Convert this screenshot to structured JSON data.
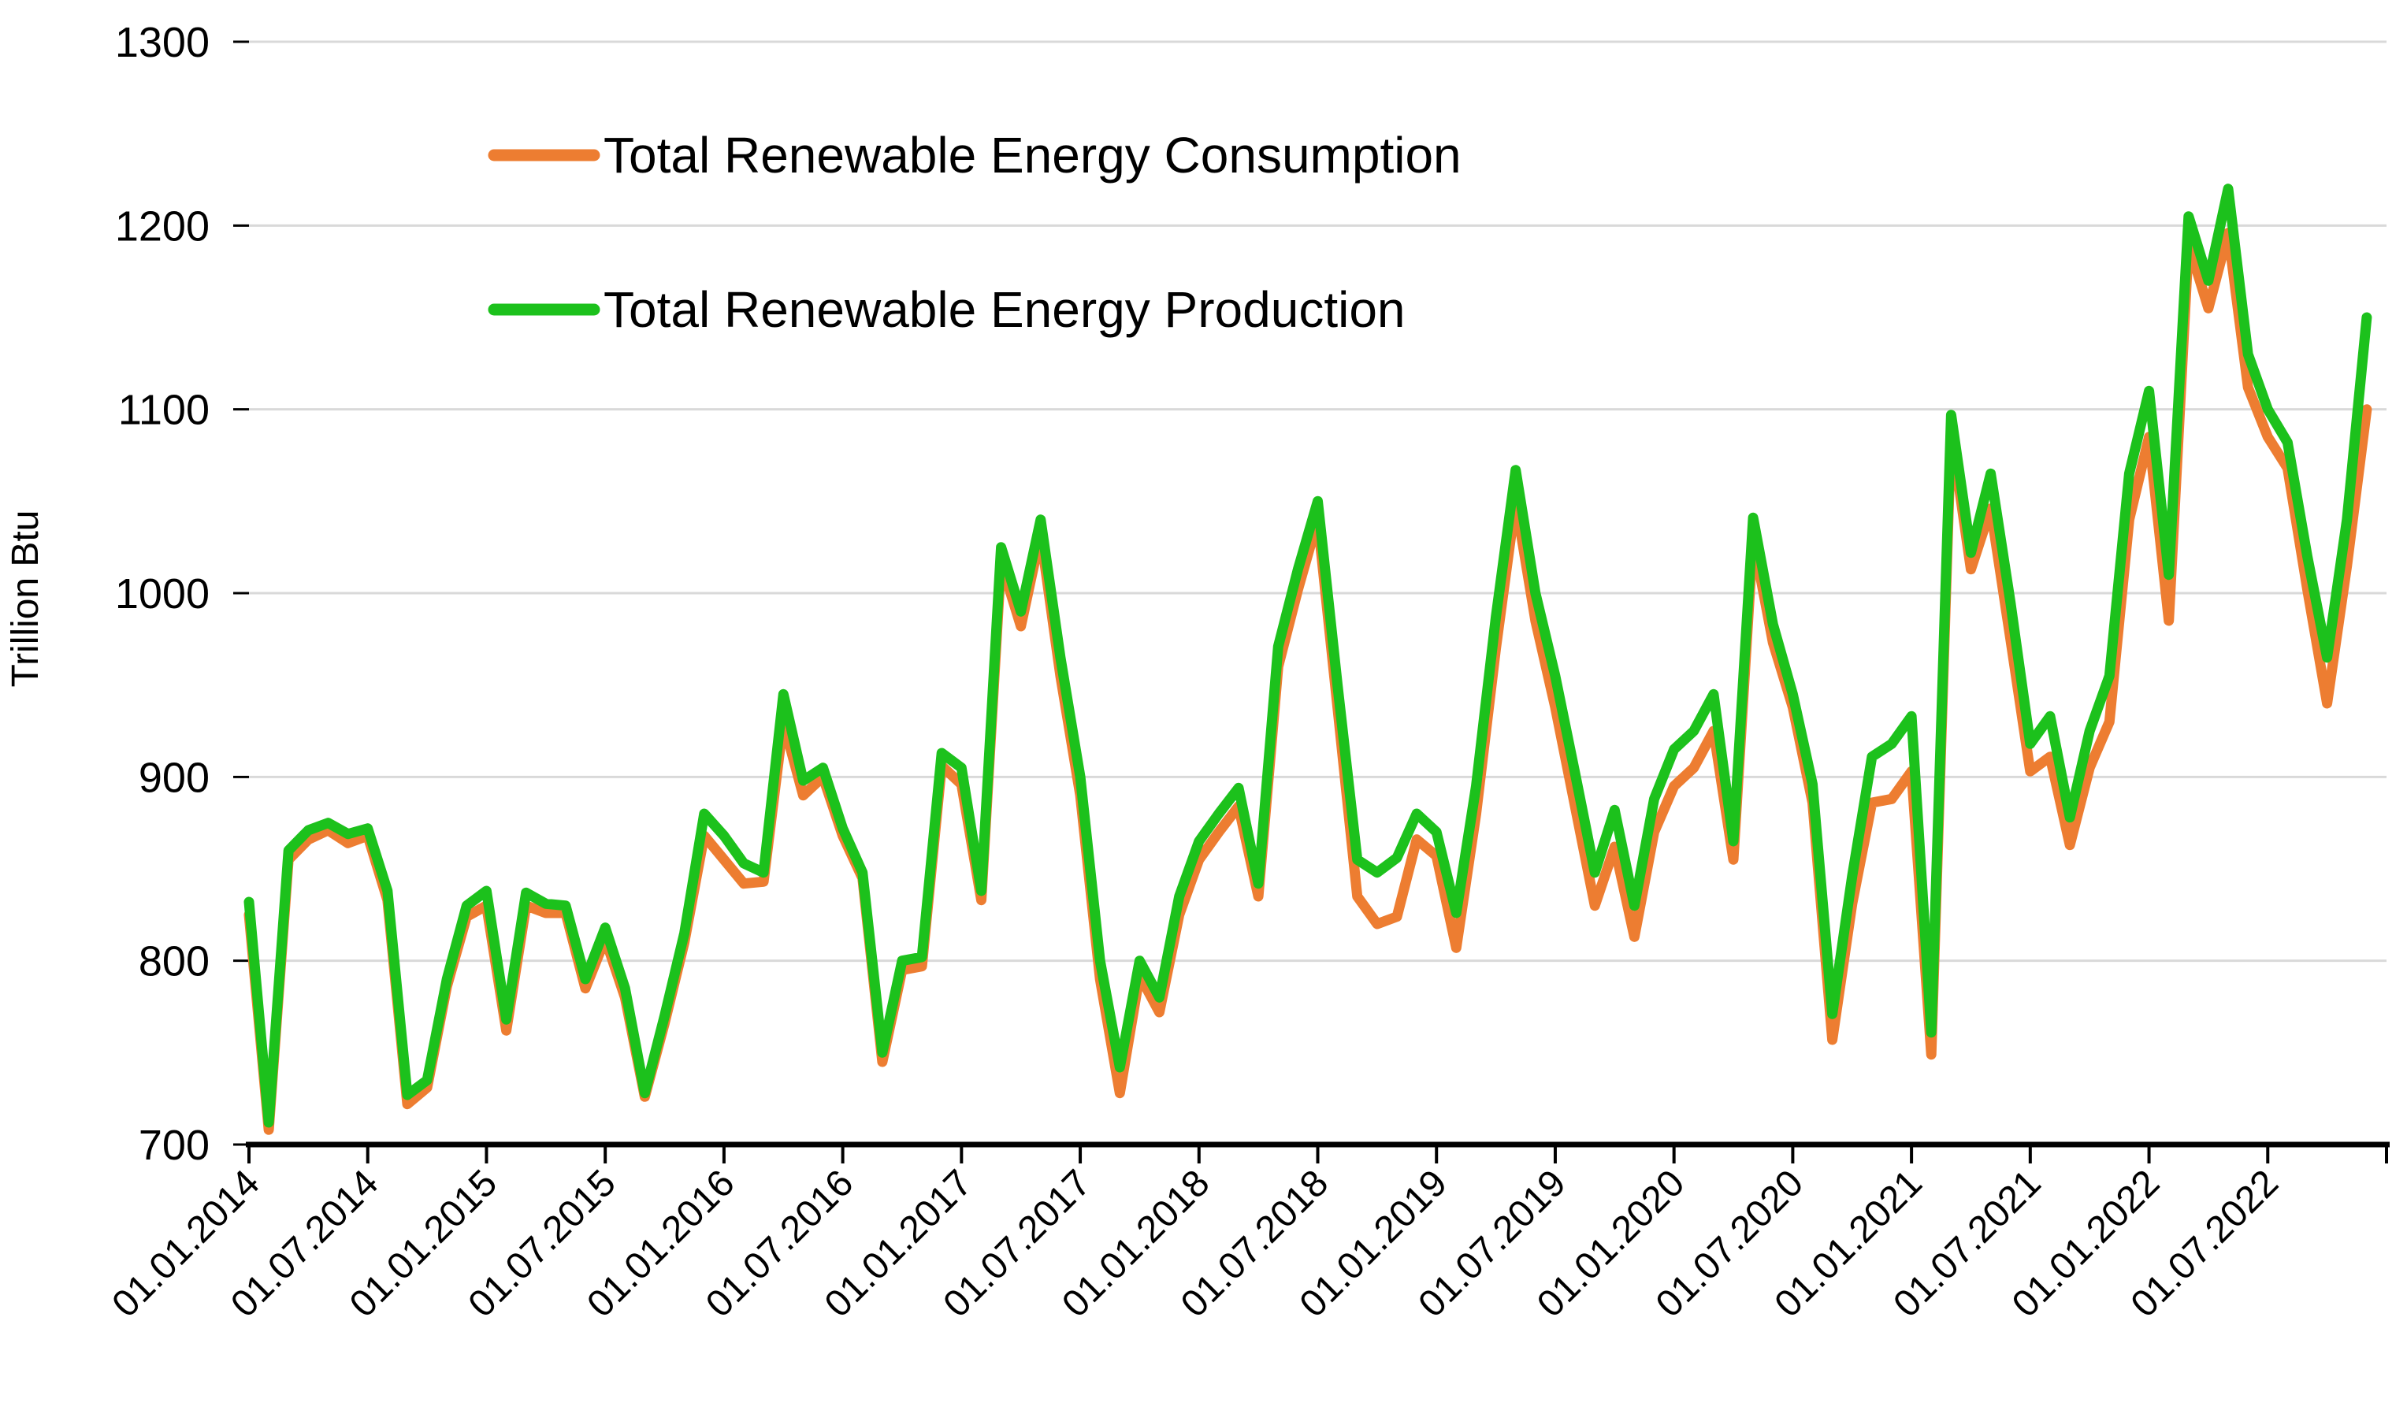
{
  "chart_data": {
    "type": "line",
    "title": "",
    "xlabel": "",
    "ylabel": "Trillion Btu",
    "ylim": [
      700,
      1300
    ],
    "yticks": [
      1300,
      1200,
      1100,
      1000,
      900,
      800,
      700
    ],
    "grid": "horizontal",
    "legend_position": "top-left-inset",
    "x_tick_labels": [
      "01.01.2014",
      "01.07.2014",
      "01.01.2015",
      "01.07.2015",
      "01.01.2016",
      "01.07.2016",
      "01.01.2017",
      "01.07.2017",
      "01.01.2018",
      "01.07.2018",
      "01.01.2019",
      "01.07.2019",
      "01.01.2020",
      "01.07.2020",
      "01.01.2021",
      "01.07.2021",
      "01.01.2022",
      "01.07.2022"
    ],
    "n_points": 108,
    "x_start_label": "01.01.2014",
    "x_end_label": "01.12.2022",
    "series": [
      {
        "name": "Total Renewable Energy Consumption",
        "color": "#ED7D31",
        "values": [
          825,
          708,
          855,
          866,
          871,
          864,
          868,
          833,
          722,
          731,
          786,
          824,
          830,
          762,
          830,
          826,
          826,
          785,
          812,
          780,
          726,
          766,
          810,
          868,
          855,
          842,
          843,
          930,
          890,
          900,
          868,
          845,
          745,
          795,
          797,
          906,
          896,
          833,
          1017,
          982,
          1032,
          955,
          890,
          790,
          728,
          792,
          772,
          825,
          855,
          870,
          884,
          835,
          960,
          1002,
          1040,
          938,
          835,
          820,
          824,
          866,
          857,
          807,
          880,
          970,
          1050,
          985,
          938,
          884,
          830,
          862,
          813,
          870,
          895,
          905,
          925,
          855,
          1030,
          973,
          938,
          886,
          757,
          831,
          886,
          888,
          903,
          749,
          1088,
          1013,
          1046,
          975,
          903,
          911,
          863,
          905,
          930,
          1040,
          1085,
          985,
          1190,
          1155,
          1196,
          1112,
          1085,
          1068,
          1002,
          940,
          1015,
          1100
        ]
      },
      {
        "name": "Total Renewable Energy Production",
        "color": "#1CC11C",
        "values": [
          832,
          712,
          860,
          871,
          875,
          869,
          872,
          838,
          727,
          735,
          790,
          830,
          838,
          768,
          837,
          831,
          830,
          790,
          818,
          785,
          728,
          770,
          815,
          880,
          868,
          853,
          848,
          945,
          898,
          905,
          872,
          848,
          750,
          800,
          802,
          913,
          905,
          838,
          1025,
          990,
          1040,
          965,
          900,
          800,
          742,
          800,
          780,
          835,
          865,
          880,
          894,
          842,
          971,
          1013,
          1050,
          950,
          855,
          848,
          856,
          880,
          870,
          826,
          895,
          987,
          1067,
          1000,
          955,
          902,
          848,
          882,
          830,
          888,
          915,
          925,
          945,
          865,
          1041,
          983,
          945,
          896,
          771,
          846,
          911,
          918,
          933,
          761,
          1097,
          1022,
          1065,
          995,
          918,
          933,
          878,
          925,
          955,
          1065,
          1110,
          1010,
          1205,
          1170,
          1220,
          1130,
          1100,
          1082,
          1020,
          965,
          1040,
          1150
        ]
      }
    ]
  }
}
